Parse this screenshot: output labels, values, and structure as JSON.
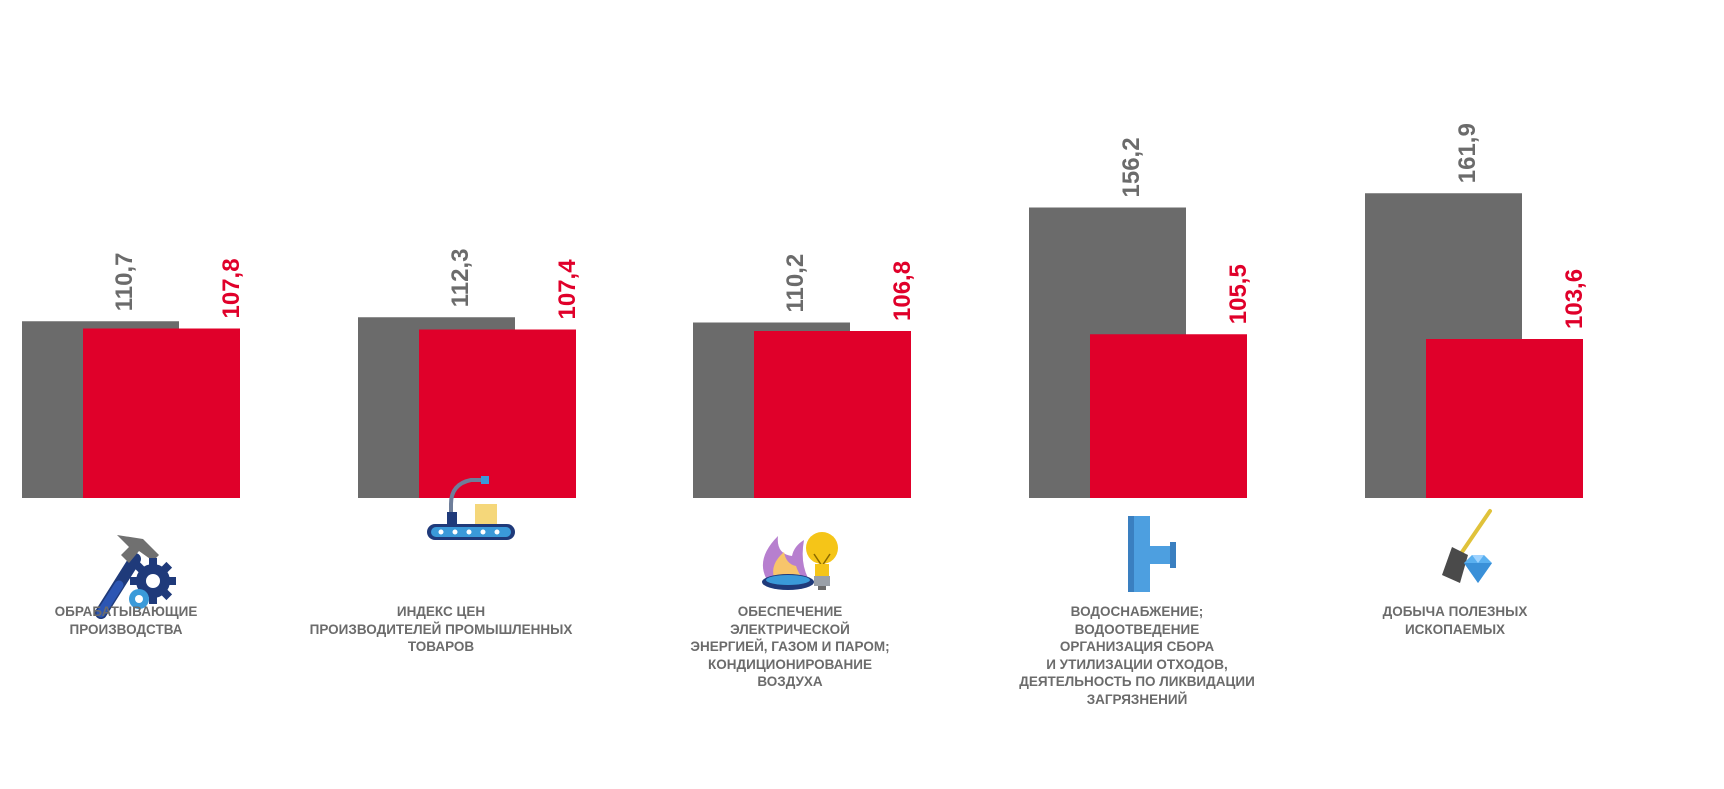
{
  "chart_data": {
    "type": "bar",
    "categories": [
      "ОБРАБАТЫВАЮЩИЕ\nПРОИЗВОДСТВА",
      "ИНДЕКС ЦЕН\nПРОИЗВОДИТЕЛЕЙ ПРОМЫШЛЕННЫХ\nТОВАРОВ",
      "ОБЕСПЕЧЕНИЕ\nЭЛЕКТРИЧЕСКОЙ\nЭНЕРГИЕЙ, ГАЗОМ И ПАРОМ;\nКОНДИЦИОНИРОВАНИЕ\nВОЗДУХА",
      "ВОДОСНАБЖЕНИЕ;\nВОДООТВЕДЕНИЕ\nОРГАНИЗАЦИЯ СБОРА\nИ УТИЛИЗАЦИИ  ОТХОДОВ,\nДЕЯТЕЛЬНОСТЬ ПО ЛИКВИДАЦИИ\nЗАГРЯЗНЕНИЙ",
      "ДОБЫЧА ПОЛЕЗНЫХ\nИСКОПАЕМЫХ"
    ],
    "series": [
      {
        "color": "#6b6b6b",
        "values": [
          110.7,
          112.3,
          110.2,
          156.2,
          161.9
        ],
        "labels": [
          "110,7",
          "112,3",
          "110,2",
          "156,2",
          "161,9"
        ]
      },
      {
        "color": "#e0002a",
        "values": [
          107.8,
          107.4,
          106.8,
          105.5,
          103.6
        ],
        "labels": [
          "107,8",
          "107,4",
          "106,8",
          "105,5",
          "103,6"
        ]
      }
    ],
    "icons": [
      "hammer-gears-icon",
      "conveyor-robot-icon",
      "gas-flame-bulb-icon",
      "water-pipe-icon",
      "shovel-gem-icon"
    ],
    "grid": false,
    "legend": "none"
  }
}
